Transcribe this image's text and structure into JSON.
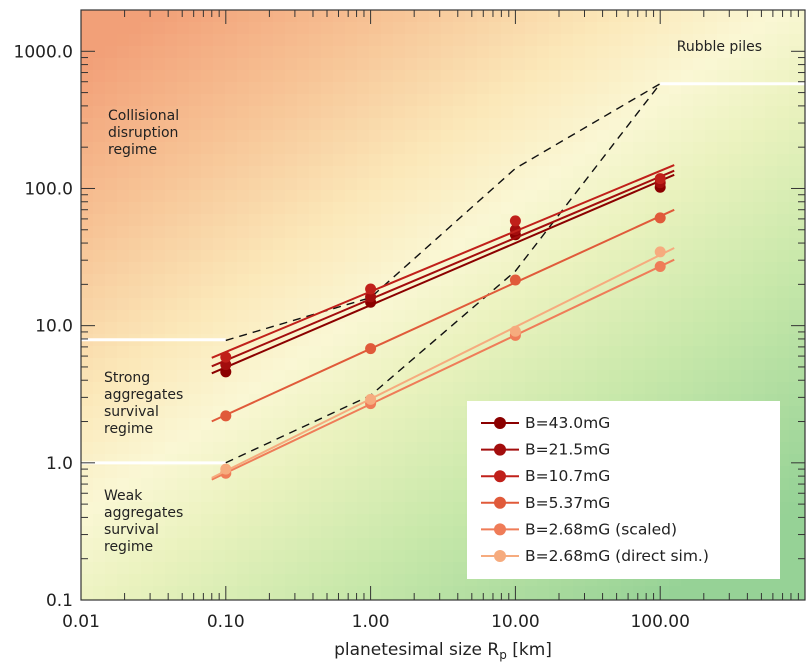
{
  "chart_data": {
    "type": "line",
    "xlabel": "planetesimal size  R",
    "xlabel_sub": "p",
    "xlabel_unit": " [km]",
    "x_scale": "log",
    "y_scale": "log",
    "xlim": [
      0.01,
      1000
    ],
    "ylim": [
      0.1,
      2000
    ],
    "x_ticks": [
      0.01,
      0.1,
      1,
      10,
      100
    ],
    "x_tick_labels": [
      "0.01",
      "0.10",
      "1.00",
      "10.00",
      "100.00"
    ],
    "y_ticks": [
      0.1,
      1,
      10,
      100,
      1000
    ],
    "y_tick_labels": [
      "0.1",
      "1.0",
      "10.0",
      "100.0",
      "1000.0"
    ],
    "legend_position": "bottom-right",
    "regions": [
      {
        "id": "collisional",
        "lines": [
          "Collisional",
          "disruption",
          "regime"
        ]
      },
      {
        "id": "strong",
        "lines": [
          "Strong",
          "aggregates",
          "survival",
          "regime"
        ]
      },
      {
        "id": "weak",
        "lines": [
          "Weak",
          "aggregates",
          "survival",
          "regime"
        ]
      },
      {
        "id": "rubble",
        "lines": [
          "Rubble piles"
        ]
      }
    ],
    "boundaries": [
      {
        "id": "strong-upper",
        "x": [
          0.01,
          0.1
        ],
        "y": [
          7.9,
          7.9
        ]
      },
      {
        "id": "weak-upper",
        "x": [
          0.01,
          0.1
        ],
        "y": [
          1.0,
          1.0
        ]
      },
      {
        "id": "rubble-lower",
        "x": [
          100,
          1000
        ],
        "y": [
          580,
          580
        ]
      }
    ],
    "dashed_upper": {
      "x": [
        0.1,
        1.0,
        10,
        100
      ],
      "y": [
        7.8,
        16,
        140,
        580
      ]
    },
    "dashed_lower": {
      "x": [
        0.1,
        1.0,
        10,
        100
      ],
      "y": [
        1.0,
        3.1,
        25,
        580
      ]
    },
    "series": [
      {
        "name": "B=43.0mG",
        "color": "#8b0000",
        "x": [
          0.1,
          1.0,
          10,
          100
        ],
        "y": [
          4.6,
          14.8,
          46,
          102
        ]
      },
      {
        "name": "B=21.5mG",
        "color": "#a30d0d",
        "x": [
          0.1,
          1.0,
          10,
          100
        ],
        "y": [
          5.2,
          16.2,
          50,
          110
        ]
      },
      {
        "name": "B=10.7mG",
        "color": "#c0201a",
        "x": [
          0.1,
          1.0,
          10,
          100
        ],
        "y": [
          5.9,
          18.5,
          58,
          118
        ]
      },
      {
        "name": "B=5.37mG",
        "color": "#e05a3a",
        "x": [
          0.1,
          1.0,
          10,
          100
        ],
        "y": [
          2.2,
          6.8,
          21.5,
          61
        ]
      },
      {
        "name": "B=2.68mG (scaled)",
        "color": "#ef7c58",
        "x": [
          0.1,
          1.0,
          10,
          100
        ],
        "y": [
          0.84,
          2.7,
          8.5,
          27
        ]
      },
      {
        "name": "B=2.68mG (direct sim.)",
        "color": "#f6ab7e",
        "x": [
          0.1,
          1.0,
          10,
          100
        ],
        "y": [
          0.9,
          2.9,
          9.1,
          34.5
        ]
      }
    ]
  }
}
